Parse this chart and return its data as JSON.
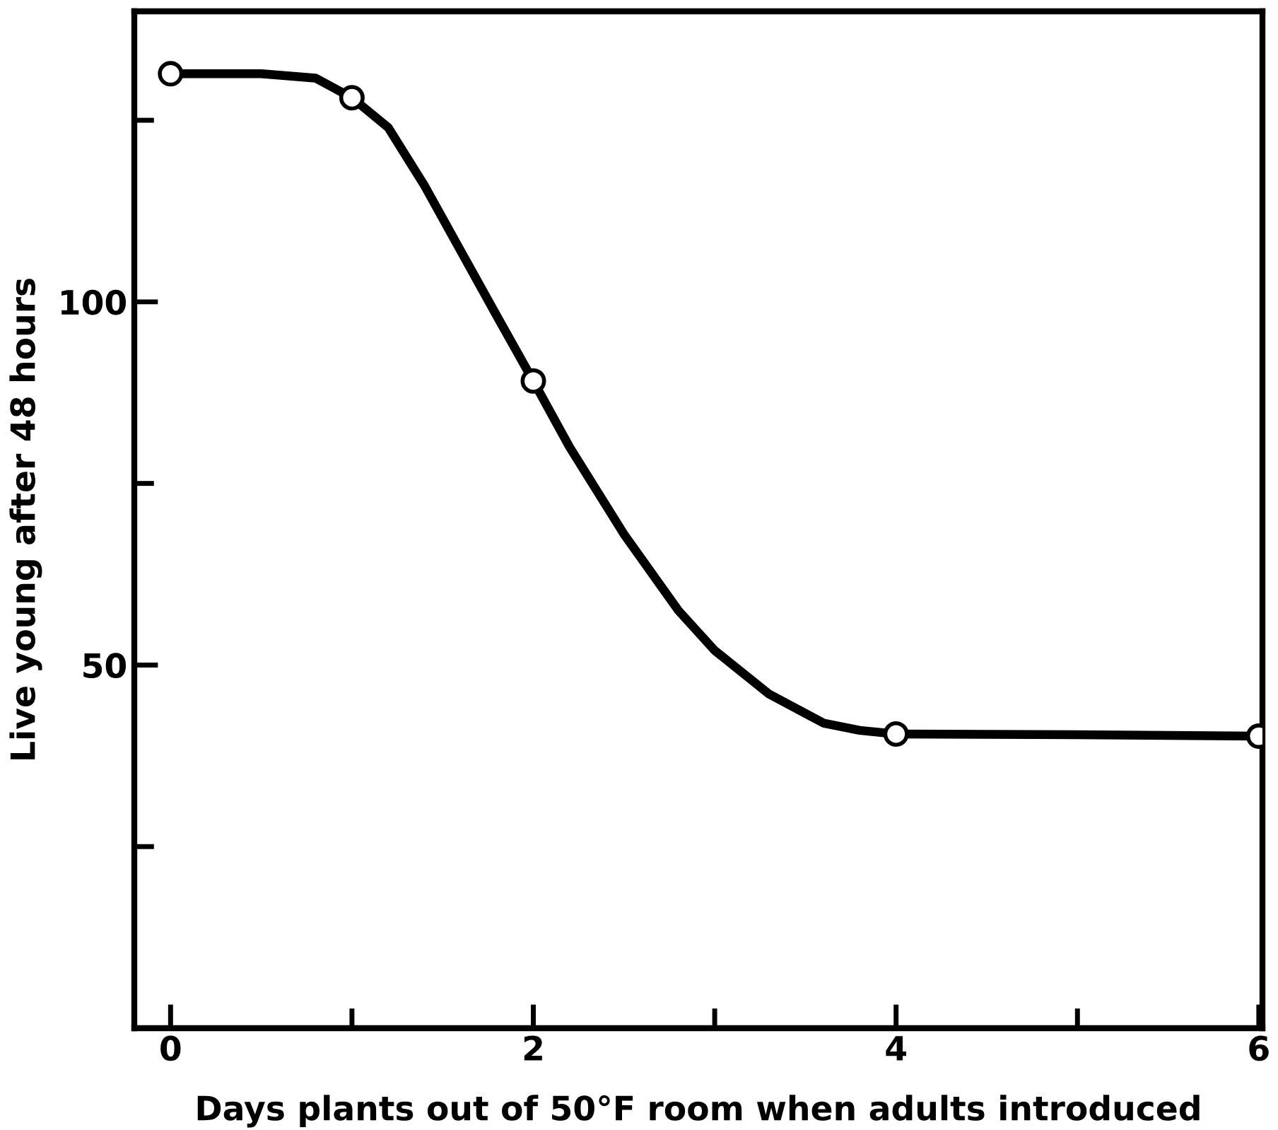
{
  "chart_data": {
    "type": "line",
    "xlabel": "Days plants out of 50°F room when adults introduced",
    "ylabel": "Live young after 48 hours",
    "xlim": [
      -0.2,
      6.02
    ],
    "ylim": [
      0,
      140
    ],
    "xticks": [
      0,
      {
        "value": 1,
        "label": null
      },
      2,
      {
        "value": 3,
        "label": null
      },
      4,
      {
        "value": 5,
        "label": null
      },
      6
    ],
    "yticks": [
      {
        "value": 25,
        "label": null
      },
      50,
      {
        "value": 75,
        "label": null
      },
      100,
      {
        "value": 125,
        "label": null
      }
    ],
    "grid": false,
    "legend": false,
    "series": [
      {
        "type": "line",
        "color": "#000000",
        "marker": "none",
        "line_style": "solid",
        "x": [
          0,
          0.5,
          0.8,
          1,
          1.2,
          1.4,
          1.6,
          1.8,
          2,
          2.2,
          2.5,
          2.8,
          3,
          3.3,
          3.6,
          3.8,
          4,
          5,
          6
        ],
        "values": [
          131.4,
          131.4,
          130.8,
          128.1,
          124,
          116,
          107,
          98,
          89.1,
          80,
          68,
          57.5,
          52,
          46,
          42,
          41,
          40.5,
          40.4,
          40.2
        ]
      },
      {
        "type": "scatter",
        "color": "#000000",
        "marker": "circle",
        "x": [
          0,
          1,
          2,
          4,
          6
        ],
        "values": [
          131.4,
          128.1,
          89.1,
          40.5,
          40.2
        ]
      }
    ]
  }
}
